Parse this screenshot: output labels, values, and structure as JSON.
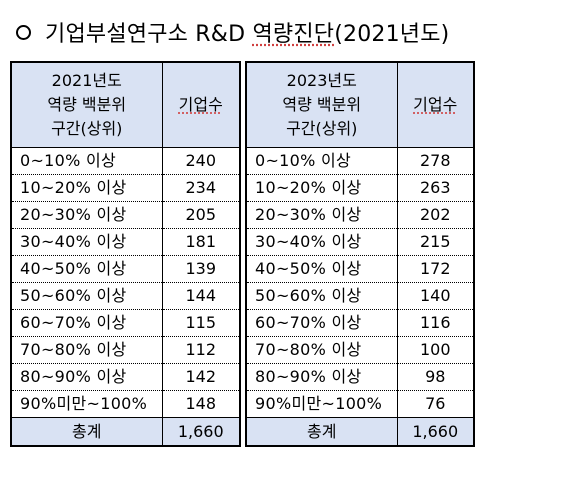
{
  "title": {
    "text_before": "기업부설연구소 R&D ",
    "text_underlined": "역량진단",
    "text_after": "(2021년도)"
  },
  "left_table": {
    "header_range": [
      "2021년도",
      "역량 백분위",
      "구간(상위)"
    ],
    "header_count": "기업수",
    "rows": [
      {
        "range": "0~10% 이상",
        "count": "240"
      },
      {
        "range": "10~20% 이상",
        "count": "234"
      },
      {
        "range": "20~30% 이상",
        "count": "205"
      },
      {
        "range": "30~40% 이상",
        "count": "181"
      },
      {
        "range": "40~50% 이상",
        "count": "139"
      },
      {
        "range": "50~60% 이상",
        "count": "144"
      },
      {
        "range": "60~70% 이상",
        "count": "115"
      },
      {
        "range": "70~80% 이상",
        "count": "112"
      },
      {
        "range": "80~90% 이상",
        "count": "142"
      },
      {
        "range": "90%미만~100%",
        "count": "148"
      }
    ],
    "total_label": "총계",
    "total_count": "1,660"
  },
  "right_table": {
    "header_range": [
      "2023년도",
      "역량 백분위",
      "구간(상위)"
    ],
    "header_count": "기업수",
    "rows": [
      {
        "range": "0~10% 이상",
        "count": "278"
      },
      {
        "range": "10~20% 이상",
        "count": "263"
      },
      {
        "range": "20~30% 이상",
        "count": "202"
      },
      {
        "range": "30~40% 이상",
        "count": "215"
      },
      {
        "range": "40~50% 이상",
        "count": "172"
      },
      {
        "range": "50~60% 이상",
        "count": "140"
      },
      {
        "range": "60~70% 이상",
        "count": "116"
      },
      {
        "range": "70~80% 이상",
        "count": "100"
      },
      {
        "range": "80~90% 이상",
        "count": "98"
      },
      {
        "range": "90%미만~100%",
        "count": "76"
      }
    ],
    "total_label": "총계",
    "total_count": "1,660"
  },
  "colors": {
    "header_bg": "#d9e2f3",
    "border": "#000000",
    "spellcheck_underline": "#d04040"
  }
}
